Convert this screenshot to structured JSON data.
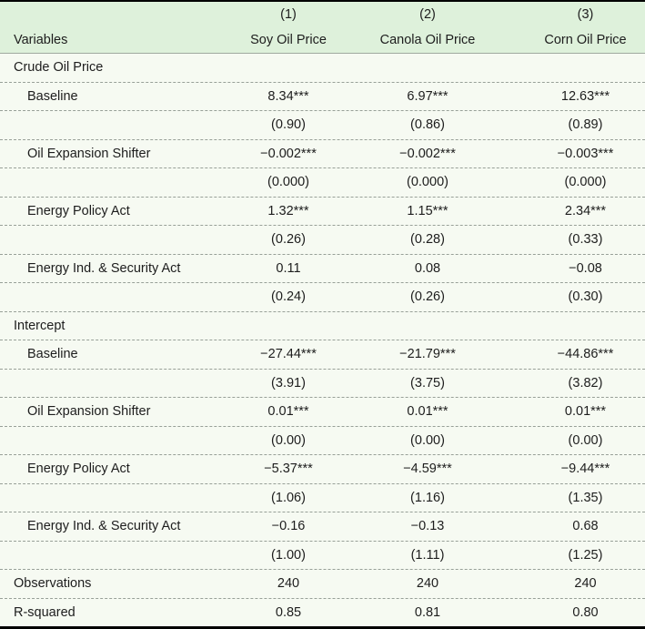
{
  "colors": {
    "header_bg": "#def1db",
    "body_bg": "#f6faf2",
    "border_black": "#000000",
    "rule_gray": "#a0aaa0",
    "dash_gray": "#98a098",
    "text": "#1d1d1d"
  },
  "table": {
    "header": {
      "model_numbers": [
        "(1)",
        "(2)",
        "(3)"
      ],
      "variables_label": "Variables",
      "columns": [
        "Soy Oil Price",
        "Canola Oil Price",
        "Corn Oil Price"
      ]
    },
    "rows": [
      {
        "type": "section",
        "label": "Crude Oil Price"
      },
      {
        "type": "coef",
        "label": "Baseline",
        "values": [
          "8.34***",
          "6.97***",
          "12.63***"
        ]
      },
      {
        "type": "se",
        "label": "",
        "values": [
          "(0.90)",
          "(0.86)",
          "(0.89)"
        ]
      },
      {
        "type": "coef",
        "label": "Oil Expansion Shifter",
        "values": [
          "−0.002***",
          "−0.002***",
          "−0.003***"
        ]
      },
      {
        "type": "se",
        "label": "",
        "values": [
          "(0.000)",
          "(0.000)",
          "(0.000)"
        ]
      },
      {
        "type": "coef",
        "label": "Energy Policy Act",
        "values": [
          "1.32***",
          "1.15***",
          "2.34***"
        ]
      },
      {
        "type": "se",
        "label": "",
        "values": [
          "(0.26)",
          "(0.28)",
          "(0.33)"
        ]
      },
      {
        "type": "coef",
        "label": "Energy Ind. & Security Act",
        "values": [
          "0.11",
          "0.08",
          "−0.08"
        ]
      },
      {
        "type": "se",
        "label": "",
        "values": [
          "(0.24)",
          "(0.26)",
          "(0.30)"
        ]
      },
      {
        "type": "section",
        "label": "Intercept"
      },
      {
        "type": "coef",
        "label": "Baseline",
        "values": [
          "−27.44***",
          "−21.79***",
          "−44.86***"
        ]
      },
      {
        "type": "se",
        "label": "",
        "values": [
          "(3.91)",
          "(3.75)",
          "(3.82)"
        ]
      },
      {
        "type": "coef",
        "label": "Oil Expansion Shifter",
        "values": [
          "0.01***",
          "0.01***",
          "0.01***"
        ]
      },
      {
        "type": "se",
        "label": "",
        "values": [
          "(0.00)",
          "(0.00)",
          "(0.00)"
        ]
      },
      {
        "type": "coef",
        "label": "Energy Policy Act",
        "values": [
          "−5.37***",
          "−4.59***",
          "−9.44***"
        ]
      },
      {
        "type": "se",
        "label": "",
        "values": [
          "(1.06)",
          "(1.16)",
          "(1.35)"
        ]
      },
      {
        "type": "coef",
        "label": "Energy Ind. & Security Act",
        "values": [
          "−0.16",
          "−0.13",
          "0.68"
        ]
      },
      {
        "type": "se",
        "label": "",
        "values": [
          "(1.00)",
          "(1.11)",
          "(1.25)"
        ]
      },
      {
        "type": "stat",
        "label": "Observations",
        "values": [
          "240",
          "240",
          "240"
        ]
      },
      {
        "type": "stat",
        "label": "R-squared",
        "values": [
          "0.85",
          "0.81",
          "0.80"
        ]
      }
    ]
  }
}
